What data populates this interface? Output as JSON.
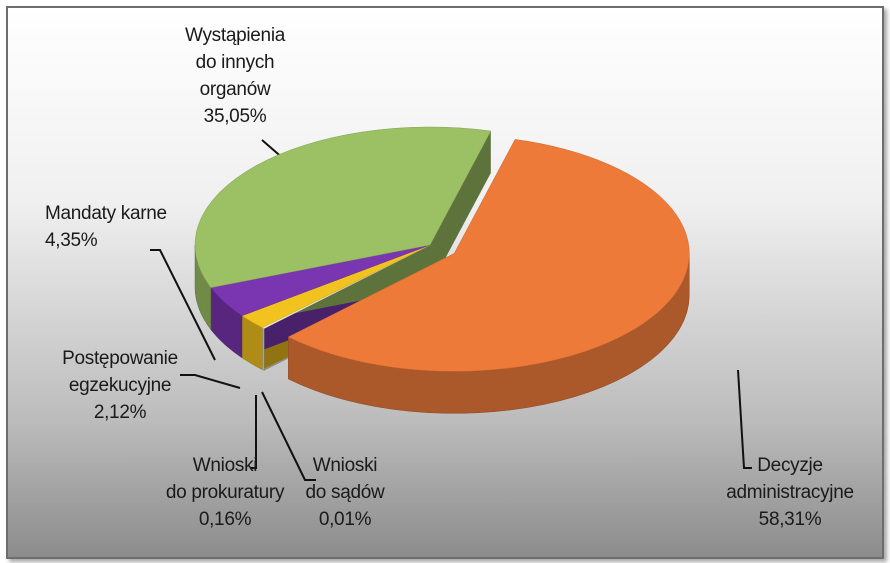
{
  "chart_data": {
    "type": "pie",
    "categories": [
      "Decyzje\nadministracyjne",
      "Wnioski\ndo sądów",
      "Wnioski\ndo prokuratury",
      "Postępowanie\negzekucyjne",
      "Mandaty karne",
      "Wystąpienia\ndo innych\norganów"
    ],
    "values": [
      58.31,
      0.01,
      0.16,
      2.12,
      4.35,
      35.05
    ],
    "value_labels": [
      "58,31%",
      "0,01%",
      "0,16%",
      "2,12%",
      "4,35%",
      "35,05%"
    ],
    "colors": [
      "#ee7a3a",
      "#a8a8a8",
      "#f2f2e8",
      "#f2c21e",
      "#7a35b0",
      "#9cc064"
    ]
  }
}
